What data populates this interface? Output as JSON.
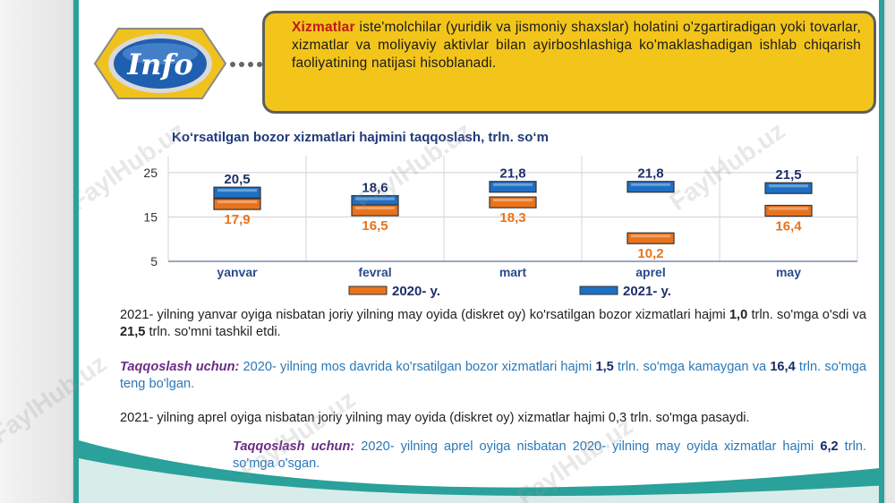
{
  "info": {
    "logo_text": "Info",
    "term": "Xizmatlar",
    "definition": " iste'molchilar (yuridik va jismoniy shaxslar) holatini o'zgartiradigan yoki tovarlar, xizmatlar va moliyaviy aktivlar bilan ayirboshlashiga ko'maklashadigan ishlab chiqarish faoliyatining natijasi hisoblanadi."
  },
  "chart_data": {
    "type": "bar",
    "title": "Ko‘rsatilgan bozor xizmatlari hajmini taqqoslash, trln. so‘m",
    "categories": [
      "yanvar",
      "fevral",
      "mart",
      "aprel",
      "may"
    ],
    "series": [
      {
        "name": "2020- y.",
        "values": [
          17.9,
          16.5,
          18.3,
          10.2,
          16.4
        ],
        "color": "#e8731c"
      },
      {
        "name": "2021- y.",
        "values": [
          20.5,
          18.6,
          21.8,
          21.8,
          21.5
        ],
        "color": "#1e6fc4"
      }
    ],
    "series_labels": {
      "2020": [
        "17,9",
        "16,5",
        "18,3",
        "10,2",
        "16,4"
      ],
      "2021": [
        "20,5",
        "18,6",
        "21,8",
        "21,8",
        "21,5"
      ]
    },
    "yticks": [
      "25",
      "15",
      "5"
    ],
    "ytick_values": [
      25,
      15,
      5
    ],
    "ylim": [
      5,
      28
    ],
    "xlabel": "",
    "ylabel": "",
    "grid": true,
    "legend_position": "bottom"
  },
  "paragraphs": {
    "p1_a": "2021- yilning yanvar oyiga nisbatan joriy yilning may oyida (diskret oy) ko'rsatilgan bozor xizmatlari hajmi ",
    "p1_n1": "1,0",
    "p1_b": " trln. so'mga o'sdi va ",
    "p1_n2": "21,5",
    "p1_c": " trln. so'mni tashkil etdi.",
    "p2_lead": "Taqqoslash uchun:",
    "p2_a": " 2020- yilning mos davrida ko'rsatilgan bozor xizmatlari hajmi ",
    "p2_n1": "1,5",
    "p2_b": " trln. so'mga kamaygan va ",
    "p2_n2": "16,4",
    "p2_c": " trln. so'mga teng bo'lgan.",
    "p3": "2021- yilning aprel oyiga nisbatan joriy yilning may oyida (diskret oy) xizmatlar hajmi 0,3 trln. so'mga pasaydi.",
    "p4_lead": "Taqqoslash uchun:",
    "p4_a": " 2020- yilning aprel oyiga nisbatan 2020- yilning may oyida xizmatlar hajmi ",
    "p4_n": "6,2",
    "p4_b": " trln. so'mga o'sgan."
  },
  "watermark": "FaylHub.uz",
  "colors": {
    "accent": "#2aa19a",
    "info_box": "#f3c51b",
    "series_2020": "#e8731c",
    "series_2021": "#1e6fc4",
    "title": "#1f3a7a"
  }
}
